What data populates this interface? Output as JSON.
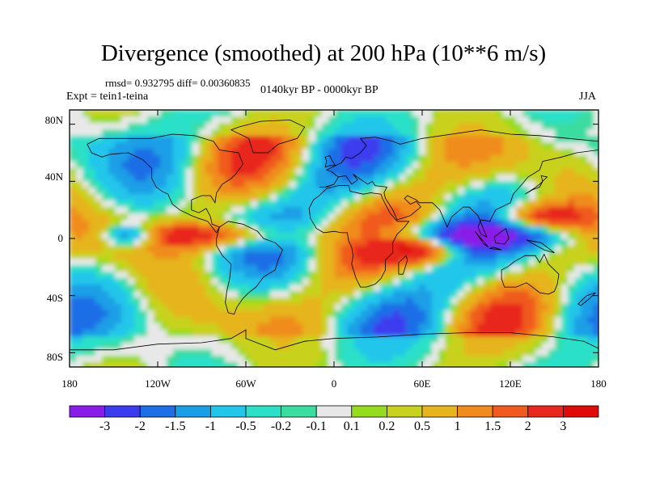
{
  "title": "Divergence (smoothed) at 200 hPa (10**6 m/s)",
  "stats": "rmsd= 0.932795 diff= 0.00360835",
  "experiment": "Expt = tein1-teina",
  "period": "0140kyr BP - 0000kyr BP",
  "season": "JJA",
  "axes": {
    "y_ticks": [
      "80N",
      "40N",
      "0",
      "40S",
      "80S"
    ],
    "x_ticks": [
      "180",
      "120W",
      "60W",
      "0",
      "60E",
      "120E",
      "180"
    ]
  },
  "colorbar": {
    "labels": [
      "-3",
      "-2",
      "-1.5",
      "-1",
      "-0.5",
      "-0.2",
      "-0.1",
      "0.1",
      "0.2",
      "0.5",
      "1",
      "1.5",
      "2",
      "3"
    ],
    "colors": [
      "#8a1ce8",
      "#3c3cef",
      "#1e6ee6",
      "#1a9fe6",
      "#22c6ea",
      "#2ce0c8",
      "#3adca0",
      "#e8e8e8",
      "#96dc1e",
      "#c8d21e",
      "#e6b41e",
      "#f08c1e",
      "#f05a1e",
      "#e8281e",
      "#e00a0a"
    ]
  },
  "colors": {
    "no_data": "#e8e8e8",
    "coastline": "#000000"
  }
}
